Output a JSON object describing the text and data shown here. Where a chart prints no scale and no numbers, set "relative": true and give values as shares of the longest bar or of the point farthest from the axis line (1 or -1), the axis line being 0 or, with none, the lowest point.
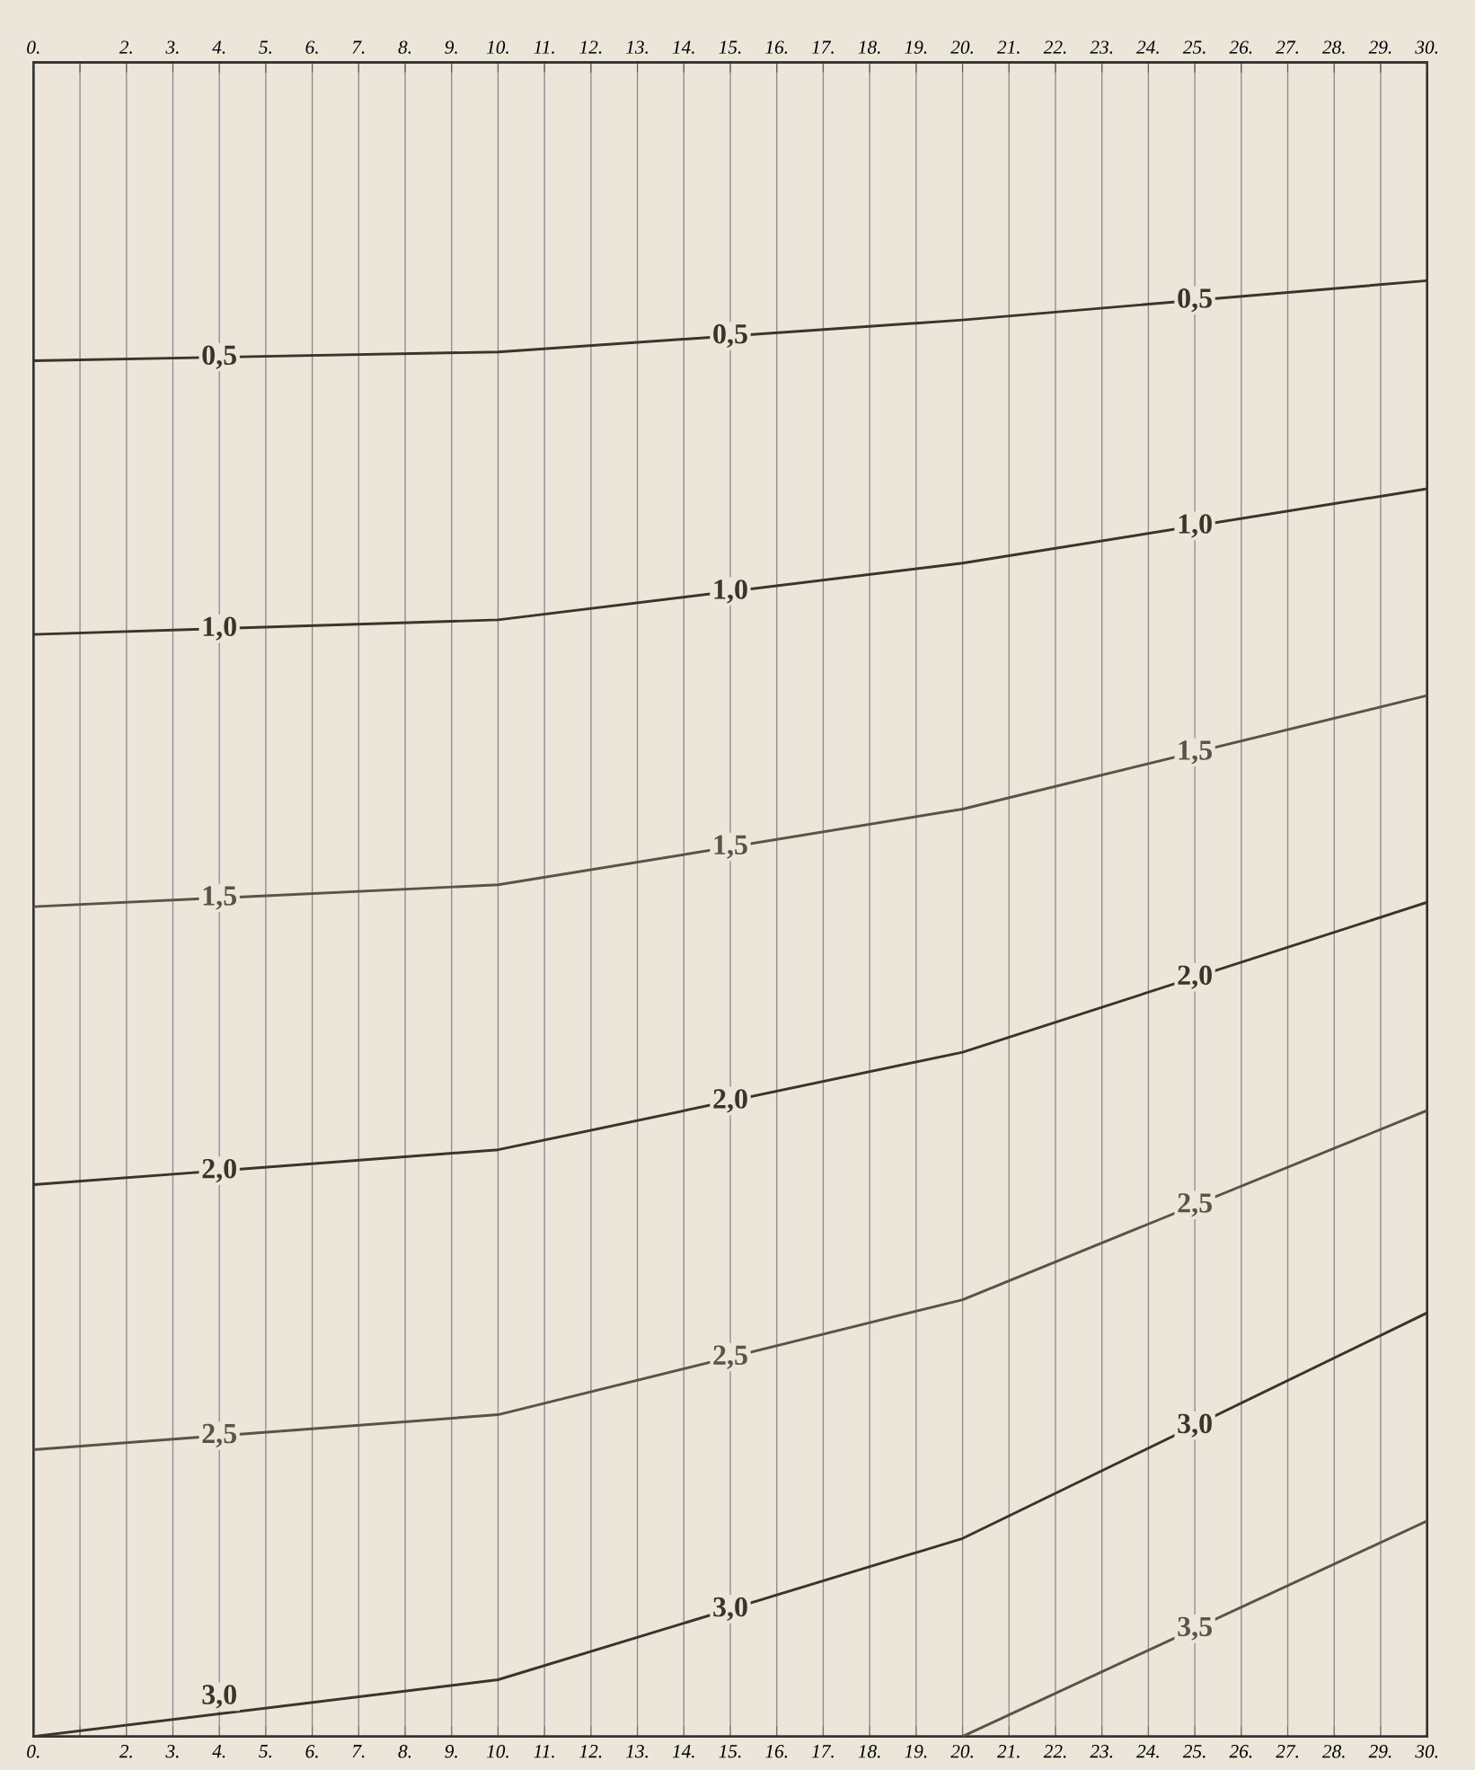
{
  "chart_data": {
    "type": "line",
    "relative": true,
    "x": [
      0,
      10,
      20,
      30
    ],
    "series": [
      {
        "name": "0,5",
        "color": "#3a342a",
        "values": [
          0.945,
          0.951,
          0.973,
          1
        ]
      },
      {
        "name": "1,0",
        "color": "#3a342a",
        "values": [
          0.757,
          0.767,
          0.806,
          0.857
        ]
      },
      {
        "name": "1,5",
        "color": "#5a5346",
        "values": [
          0.57,
          0.585,
          0.637,
          0.715
        ]
      },
      {
        "name": "2,0",
        "color": "#3a342a",
        "values": [
          0.379,
          0.403,
          0.47,
          0.573
        ]
      },
      {
        "name": "2,5",
        "color": "#5a5346",
        "values": [
          0.197,
          0.221,
          0.3,
          0.43
        ]
      },
      {
        "name": "3,0",
        "color": "#3a342a",
        "values": [
          0,
          0.039,
          0.136,
          0.291
        ]
      },
      {
        "name": "3,5",
        "color": "#5a5346",
        "values": [
          null,
          null,
          0,
          0.148
        ]
      }
    ],
    "xlim": [
      0,
      30
    ],
    "xticks": [
      {
        "value": 0,
        "label": "0."
      },
      {
        "value": 1,
        "label": null
      },
      {
        "value": 2,
        "label": "2."
      },
      {
        "value": 3,
        "label": "3."
      },
      {
        "value": 4,
        "label": "4."
      },
      {
        "value": 5,
        "label": "5."
      },
      {
        "value": 6,
        "label": "6."
      },
      {
        "value": 7,
        "label": "7."
      },
      {
        "value": 8,
        "label": "8."
      },
      {
        "value": 9,
        "label": "9."
      },
      {
        "value": 10,
        "label": "10."
      },
      {
        "value": 11,
        "label": "11."
      },
      {
        "value": 12,
        "label": "12."
      },
      {
        "value": 13,
        "label": "13."
      },
      {
        "value": 14,
        "label": "14."
      },
      {
        "value": 15,
        "label": "15."
      },
      {
        "value": 16,
        "label": "16."
      },
      {
        "value": 17,
        "label": "17."
      },
      {
        "value": 18,
        "label": "18."
      },
      {
        "value": 19,
        "label": "19."
      },
      {
        "value": 20,
        "label": "20."
      },
      {
        "value": 21,
        "label": "21."
      },
      {
        "value": 22,
        "label": "22."
      },
      {
        "value": 23,
        "label": "23."
      },
      {
        "value": 24,
        "label": "24."
      },
      {
        "value": 25,
        "label": "25."
      },
      {
        "value": 26,
        "label": "26."
      },
      {
        "value": 27,
        "label": "27."
      },
      {
        "value": 28,
        "label": "28."
      },
      {
        "value": 29,
        "label": "29."
      },
      {
        "value": 30,
        "label": "30."
      }
    ],
    "x2lim": [
      0,
      30
    ],
    "x2ticks": [
      {
        "value": 0,
        "label": "0."
      },
      {
        "value": 1,
        "label": null
      },
      {
        "value": 2,
        "label": "2."
      },
      {
        "value": 3,
        "label": "3."
      },
      {
        "value": 4,
        "label": "4."
      },
      {
        "value": 5,
        "label": "5."
      },
      {
        "value": 6,
        "label": "6."
      },
      {
        "value": 7,
        "label": "7."
      },
      {
        "value": 8,
        "label": "8."
      },
      {
        "value": 9,
        "label": "9."
      },
      {
        "value": 10,
        "label": "10."
      },
      {
        "value": 11,
        "label": "11."
      },
      {
        "value": 12,
        "label": "12."
      },
      {
        "value": 13,
        "label": "13."
      },
      {
        "value": 14,
        "label": "14."
      },
      {
        "value": 15,
        "label": "15."
      },
      {
        "value": 16,
        "label": "16."
      },
      {
        "value": 17,
        "label": "17."
      },
      {
        "value": 18,
        "label": "18."
      },
      {
        "value": 19,
        "label": "19."
      },
      {
        "value": 20,
        "label": "20."
      },
      {
        "value": 21,
        "label": "21."
      },
      {
        "value": 22,
        "label": "22."
      },
      {
        "value": 23,
        "label": "23."
      },
      {
        "value": 24,
        "label": "24."
      },
      {
        "value": 25,
        "label": "25."
      },
      {
        "value": 26,
        "label": "26."
      },
      {
        "value": 27,
        "label": "27."
      },
      {
        "value": 28,
        "label": "28."
      },
      {
        "value": 29,
        "label": "29."
      },
      {
        "value": 30,
        "label": "30."
      }
    ],
    "grid": "x",
    "tick_labels": "x",
    "marker": "none",
    "line_style": "solid"
  }
}
